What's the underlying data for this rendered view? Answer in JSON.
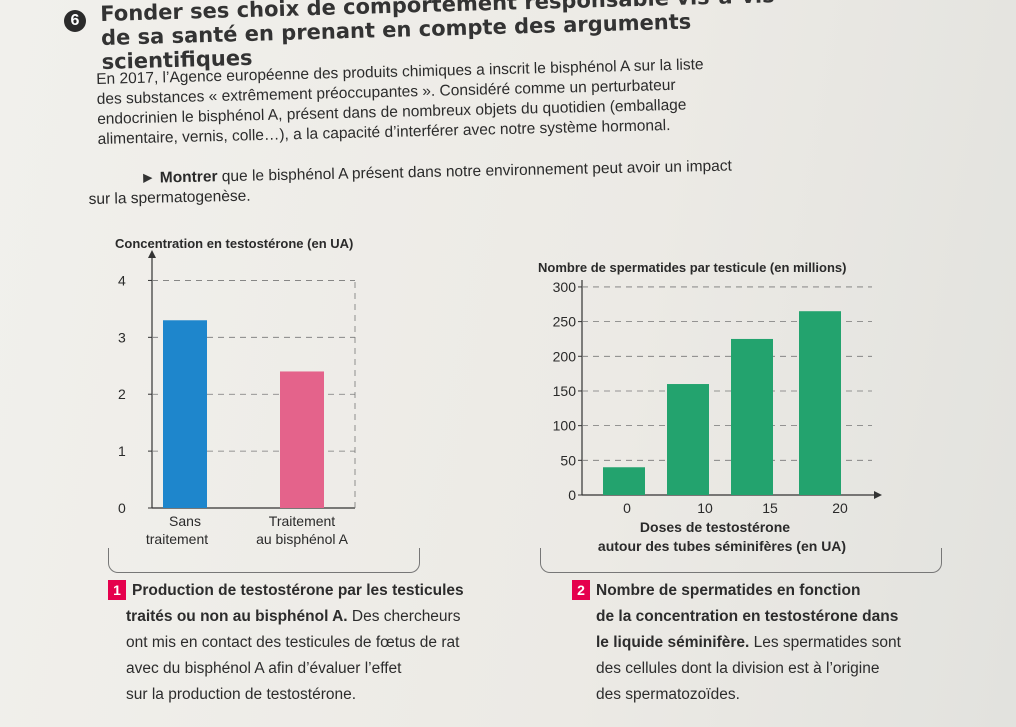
{
  "exercise": {
    "number": "6",
    "title_line1": "Fonder ses choix de comportement responsable vis-à-vis",
    "title_line2": "de sa santé en prenant en compte des arguments scientifiques"
  },
  "intro": {
    "l1": "En 2017, l’Agence européenne des produits chimiques a inscrit le bisphénol A sur la liste",
    "l2": "des substances « extrêmement préoccupantes ». Considéré comme un perturbateur",
    "l3": "endocrinien le bisphénol A, présent dans de nombreux objets du quotidien (emballage",
    "l4": "alimentaire, vernis, colle…), a la capacité d’interférer avec notre système hormonal."
  },
  "task": {
    "arrow": "►",
    "verb": "Montrer",
    "rest": " que le bisphénol A présent dans notre environnement peut avoir un impact",
    "l2": "sur la spermatogenèse."
  },
  "chart_data": [
    {
      "type": "bar",
      "ylabel": "Concentration en testostérone (en UA)",
      "categories": [
        [
          "Sans",
          "traitement"
        ],
        [
          "Traitement",
          "au bisphénol A"
        ]
      ],
      "values": [
        3.3,
        2.4
      ],
      "colors": [
        "#1e86cc",
        "#e4638b"
      ],
      "yticks": [
        "0",
        "1",
        "2",
        "3",
        "4"
      ],
      "ylim": [
        0,
        4.5
      ],
      "grid": true
    },
    {
      "type": "bar",
      "ylabel": "Nombre de spermatides par testicule (en millions)",
      "xlabel_line1": "Doses de testostérone",
      "xlabel_line2": "autour des tubes séminifères (en UA)",
      "xticks": [
        "0",
        "10",
        "15",
        "20"
      ],
      "values": [
        40,
        160,
        225,
        265
      ],
      "color": "#23a36e",
      "yticks": [
        "0",
        "50",
        "100",
        "150",
        "200",
        "250",
        "300"
      ],
      "ylim": [
        0,
        310
      ],
      "grid": true
    }
  ],
  "captions": {
    "c1": {
      "num": "1",
      "bold1": "Production de testostérone par les testicules",
      "bold2": "traités ou non au bisphénol A.",
      "rest2": " Des chercheurs",
      "l3": "ont mis en contact des testicules de fœtus de rat",
      "l4": "avec du bisphénol A afin d’évaluer l’effet",
      "l5": "sur la production de testostérone."
    },
    "c2": {
      "num": "2",
      "bold1": "Nombre de spermatides en fonction",
      "bold2": "de la concentration en testostérone dans",
      "bold3": "le liquide séminifère.",
      "rest3": " Les spermatides sont",
      "l4": "des cellules dont la division est à l’origine",
      "l5": "des spermatozoïdes."
    }
  }
}
